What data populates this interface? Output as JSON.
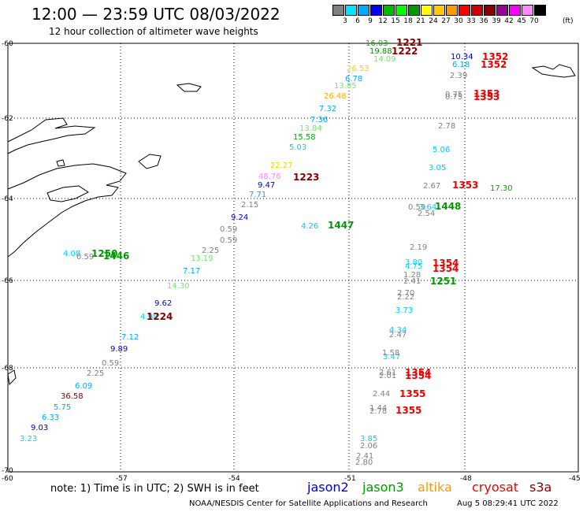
{
  "header": {
    "title": "12:00 — 23:59 UTC 08/03/2022",
    "subtitle": "12 hour collection of altimeter wave heights"
  },
  "legend": {
    "colors": [
      "#808080",
      "#00e5ff",
      "#00aaff",
      "#0000ff",
      "#00bb00",
      "#00ff00",
      "#009900",
      "#ffff00",
      "#ffcc00",
      "#ff9900",
      "#ff0000",
      "#cc0000",
      "#880000",
      "#990099",
      "#ff00ff",
      "#ff88ff",
      "#000000"
    ],
    "labels": [
      "3",
      "6",
      "9",
      "12",
      "15",
      "18",
      "21",
      "24",
      "27",
      "30",
      "33",
      "36",
      "39",
      "42",
      "45",
      "70"
    ],
    "unit": "(ft)"
  },
  "axes": {
    "lat_labels": [
      "-60",
      "-62",
      "-64",
      "-66",
      "-68",
      "-70"
    ],
    "lon_labels": [
      "-60",
      "-57",
      "-54",
      "-51",
      "-48",
      "-45"
    ]
  },
  "observations": [
    {
      "t": "16.03",
      "c": "#00bb00"
    },
    {
      "t": "19.88",
      "c": "#009900"
    },
    {
      "t": "14.09",
      "c": "#66ee66"
    },
    {
      "t": "26.53",
      "c": "#ffcc00"
    },
    {
      "t": "6.78",
      "c": "#00aaff"
    },
    {
      "t": "13.85",
      "c": "#66ee66"
    },
    {
      "t": "26.48",
      "c": "#ffaa00"
    },
    {
      "t": "7.32",
      "c": "#00aaff"
    },
    {
      "t": "7.36",
      "c": "#00aaff"
    },
    {
      "t": "13.84",
      "c": "#66ee66"
    },
    {
      "t": "15.58",
      "c": "#00aa00"
    },
    {
      "t": "5.03",
      "c": "#00ccff"
    },
    {
      "t": "22.27",
      "c": "#dddd00"
    },
    {
      "t": "48.76",
      "c": "#ff88ff"
    },
    {
      "t": "9.47",
      "c": "#0000cc"
    },
    {
      "t": "7.71",
      "c": "#00aaff"
    },
    {
      "t": "2.15",
      "c": "#808080"
    },
    {
      "t": "9.24",
      "c": "#0000cc"
    },
    {
      "t": "0.59",
      "c": "#808080"
    },
    {
      "t": "0.59",
      "c": "#808080"
    },
    {
      "t": "2.25",
      "c": "#808080"
    },
    {
      "t": "13.19",
      "c": "#66ee66"
    },
    {
      "t": "7.17",
      "c": "#00aaff"
    },
    {
      "t": "14.30",
      "c": "#66ee66"
    },
    {
      "t": "9.62",
      "c": "#0000cc"
    },
    {
      "t": "4.98",
      "c": "#00ccff"
    },
    {
      "t": "7.12",
      "c": "#00aaff"
    },
    {
      "t": "9.89",
      "c": "#0000cc"
    },
    {
      "t": "0.59",
      "c": "#808080"
    },
    {
      "t": "2.25",
      "c": "#808080"
    },
    {
      "t": "6.09",
      "c": "#00aaff"
    },
    {
      "t": "36.58",
      "c": "#880000"
    },
    {
      "t": "5.75",
      "c": "#00aaff"
    },
    {
      "t": "6.33",
      "c": "#00aaff"
    },
    {
      "t": "9.03",
      "c": "#0000cc"
    },
    {
      "t": "3.23",
      "c": "#00ccff"
    },
    {
      "t": "4.08",
      "c": "#00ccff"
    },
    {
      "t": "0.59",
      "c": "#808080"
    },
    {
      "t": "4.26",
      "c": "#00ccff"
    },
    {
      "t": "10.34",
      "c": "#0000cc"
    },
    {
      "t": "6.18",
      "c": "#00aaff"
    },
    {
      "t": "2.39",
      "c": "#808080"
    },
    {
      "t": "0.75",
      "c": "#808080"
    },
    {
      "t": "0.75",
      "c": "#808080"
    },
    {
      "t": "2.78",
      "c": "#808080"
    },
    {
      "t": "5.06",
      "c": "#00ccff"
    },
    {
      "t": "3.05",
      "c": "#00ccff"
    },
    {
      "t": "2.67",
      "c": "#808080"
    },
    {
      "t": "17.30",
      "c": "#00aa00"
    },
    {
      "t": "0.59",
      "c": "#808080"
    },
    {
      "t": "3.64",
      "c": "#00ccff"
    },
    {
      "t": "2.54",
      "c": "#808080"
    },
    {
      "t": "2.19",
      "c": "#808080"
    },
    {
      "t": "3.80",
      "c": "#00ccff"
    },
    {
      "t": "4.75",
      "c": "#00ccff"
    },
    {
      "t": "1.28",
      "c": "#808080"
    },
    {
      "t": "2.41",
      "c": "#808080"
    },
    {
      "t": "2.70",
      "c": "#808080"
    },
    {
      "t": "2.22",
      "c": "#808080"
    },
    {
      "t": "3.73",
      "c": "#00ccff"
    },
    {
      "t": "4.34",
      "c": "#00ccff"
    },
    {
      "t": "2.47",
      "c": "#808080"
    },
    {
      "t": "1.58",
      "c": "#808080"
    },
    {
      "t": "3.47",
      "c": "#00ccff"
    },
    {
      "t": "2.61",
      "c": "#808080"
    },
    {
      "t": "2.01",
      "c": "#808080"
    },
    {
      "t": "2.44",
      "c": "#808080"
    },
    {
      "t": "1.44",
      "c": "#808080"
    },
    {
      "t": "2.78",
      "c": "#808080"
    },
    {
      "t": "3.85",
      "c": "#00ccff"
    },
    {
      "t": "2.06",
      "c": "#808080"
    },
    {
      "t": "2.41",
      "c": "#808080"
    },
    {
      "t": "2.80",
      "c": "#808080"
    }
  ],
  "times": [
    {
      "t": "1221",
      "c": "#880000"
    },
    {
      "t": "1222",
      "c": "#880000"
    },
    {
      "t": "1223",
      "c": "#880000"
    },
    {
      "t": "1224",
      "c": "#880000"
    },
    {
      "t": "1250",
      "c": "#009900"
    },
    {
      "t": "1446",
      "c": "#009900"
    },
    {
      "t": "1447",
      "c": "#009900"
    },
    {
      "t": "1352",
      "c": "#ee0000"
    },
    {
      "t": "1352",
      "c": "#ee0000"
    },
    {
      "t": "1353",
      "c": "#ee0000"
    },
    {
      "t": "1353",
      "c": "#ee0000"
    },
    {
      "t": "1353",
      "c": "#ee0000"
    },
    {
      "t": "1448",
      "c": "#009900"
    },
    {
      "t": "1354",
      "c": "#ee0000"
    },
    {
      "t": "1354",
      "c": "#ee0000"
    },
    {
      "t": "1251",
      "c": "#009900"
    },
    {
      "t": "1354",
      "c": "#ee0000"
    },
    {
      "t": "1354",
      "c": "#ee0000"
    },
    {
      "t": "1355",
      "c": "#ee0000"
    },
    {
      "t": "1355",
      "c": "#ee0000"
    }
  ],
  "footer": {
    "note": "note:  1) Time is in UTC;  2) SWH is in feet",
    "satellites": [
      {
        "name": "jason2",
        "color": "#0000cc"
      },
      {
        "name": "jason3",
        "color": "#009900"
      },
      {
        "name": "altika",
        "color": "#ff9900"
      },
      {
        "name": "cryosat",
        "color": "#ee0000"
      },
      {
        "name": "s3a",
        "color": "#880000"
      }
    ],
    "credit": "NOAA/NESDIS Center for Satellite Applications and Research",
    "timestamp": "Aug  5 08:29:41 UTC 2022"
  }
}
